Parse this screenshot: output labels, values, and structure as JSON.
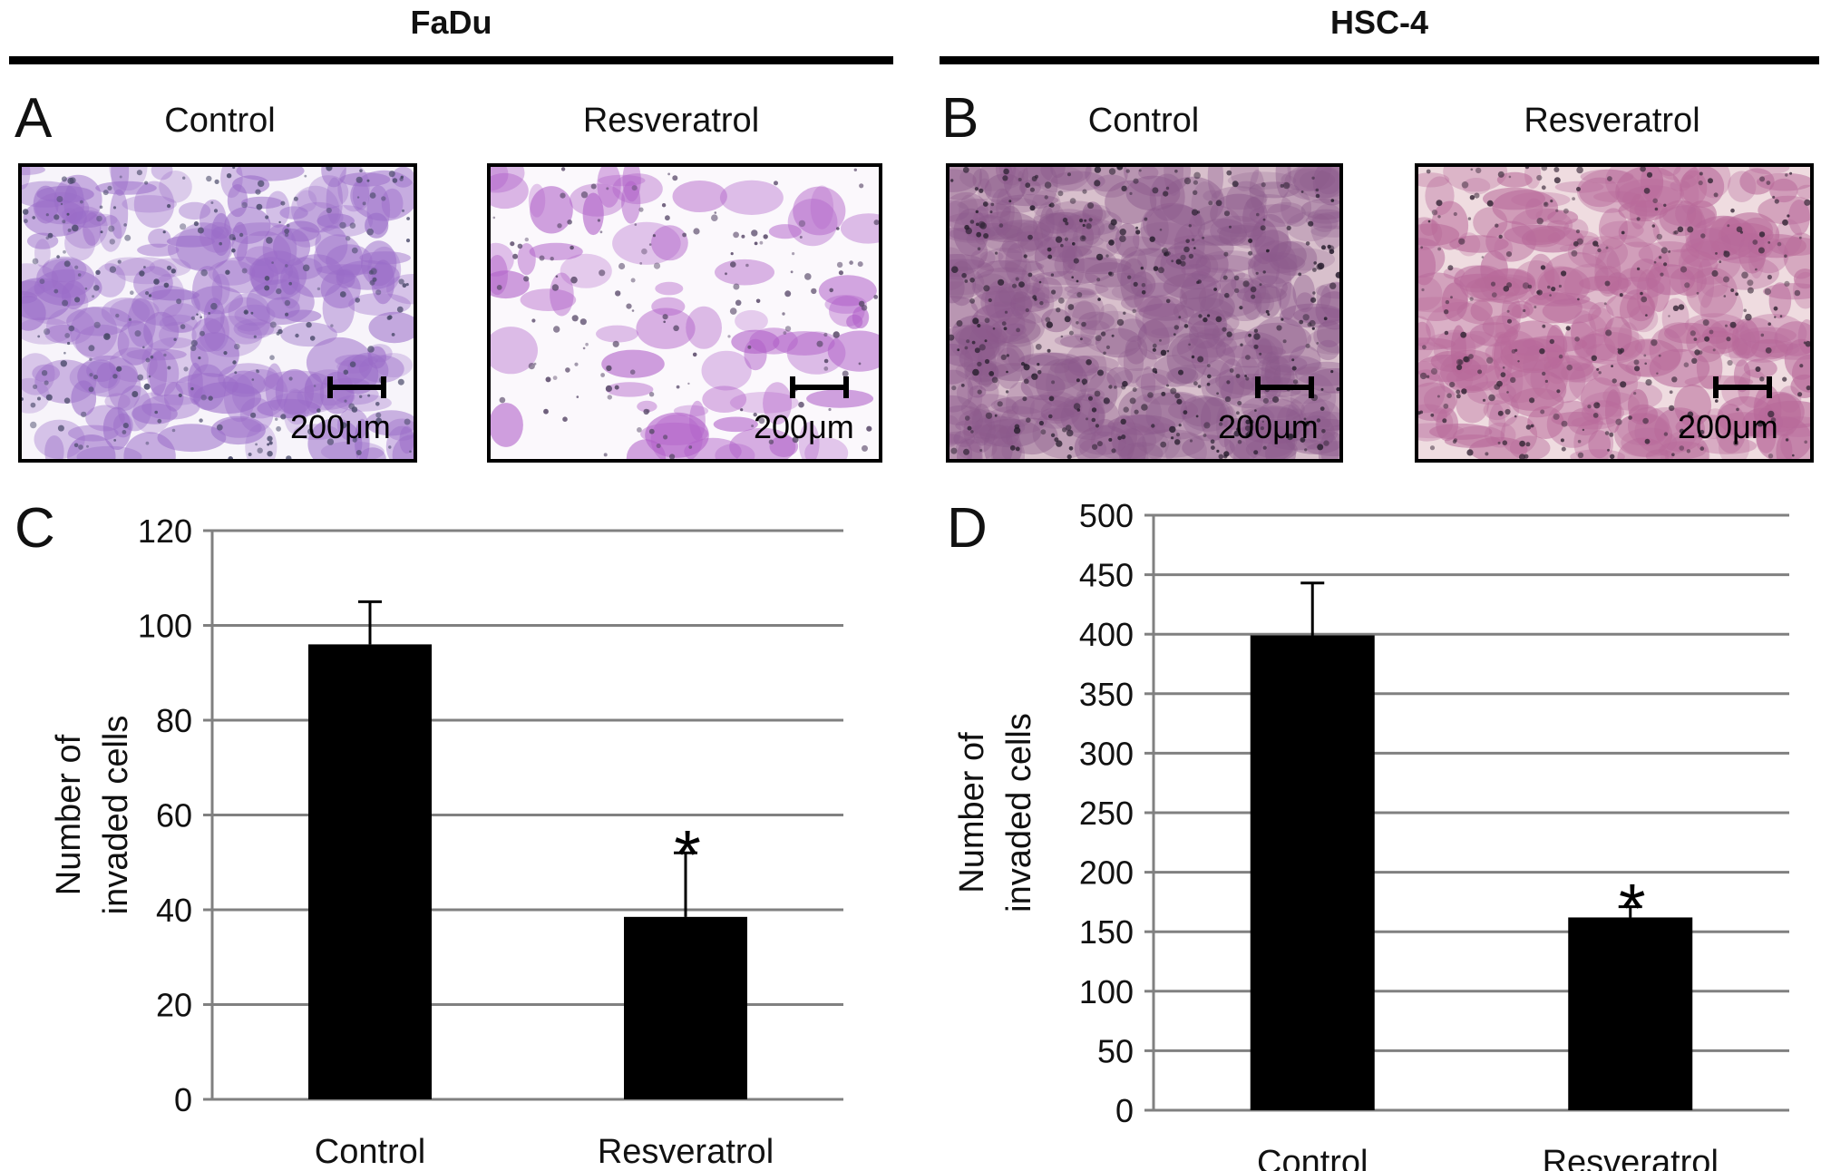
{
  "headers": {
    "left": "FaDu",
    "right": "HSC-4"
  },
  "panels": {
    "A": {
      "letter": "A",
      "images": [
        {
          "label": "Control",
          "scale_text": "200μm"
        },
        {
          "label": "Resveratrol",
          "scale_text": "200μm"
        }
      ]
    },
    "B": {
      "letter": "B",
      "images": [
        {
          "label": "Control",
          "scale_text": "200μm"
        },
        {
          "label": "Resveratrol",
          "scale_text": "200μm"
        }
      ]
    },
    "C": {
      "letter": "C"
    },
    "D": {
      "letter": "D"
    }
  },
  "colors": {
    "bar": "#000000",
    "grid": "#808080",
    "fadu_stain": "#9a6cc8",
    "hsc4_stain": "#b86a9a"
  },
  "chart_data": [
    {
      "type": "bar",
      "panel": "C",
      "title": "",
      "categories": [
        "Control",
        "Resveratrol"
      ],
      "values": [
        96,
        38.5
      ],
      "error": [
        9,
        13.5
      ],
      "significance": [
        "",
        "*"
      ],
      "ylabel": [
        "Number of",
        "invaded cells"
      ],
      "ylim": [
        0,
        120
      ],
      "yticks": [
        0,
        20,
        40,
        60,
        80,
        100,
        120
      ],
      "grid": true
    },
    {
      "type": "bar",
      "panel": "D",
      "title": "",
      "categories": [
        "Control",
        "Resveratrol"
      ],
      "values": [
        399,
        162
      ],
      "error": [
        44,
        9
      ],
      "significance": [
        "",
        "*"
      ],
      "ylabel": [
        "Number of",
        "invaded cells"
      ],
      "ylim": [
        0,
        500
      ],
      "yticks": [
        0,
        50,
        100,
        150,
        200,
        250,
        300,
        350,
        400,
        450,
        500
      ],
      "grid": true
    }
  ]
}
